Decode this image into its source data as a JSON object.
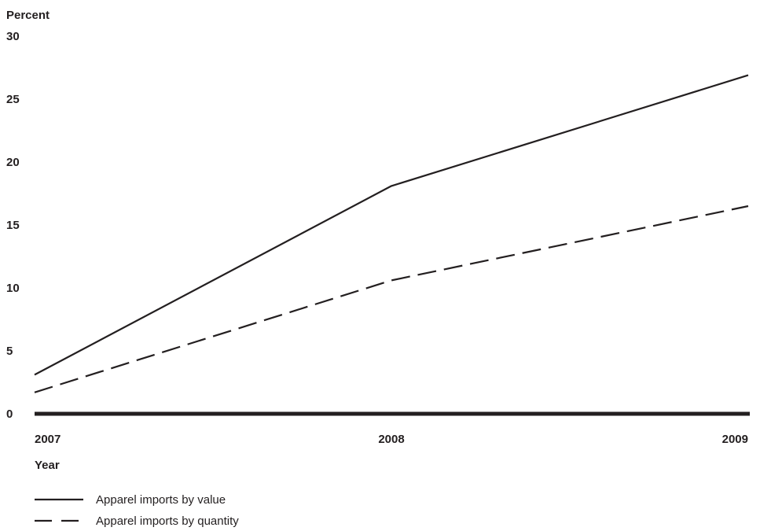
{
  "chart_data": {
    "type": "line",
    "title": "",
    "ylabel": "Percent",
    "xlabel": "Year",
    "x": [
      "2007",
      "2008",
      "2009"
    ],
    "ylim": [
      0,
      30
    ],
    "yticks": [
      0,
      5,
      10,
      15,
      20,
      25,
      30
    ],
    "grid": false,
    "legend_position": "bottom-left",
    "series": [
      {
        "name": "Apparel imports by value",
        "line_style": "solid",
        "color": "#231f20",
        "values": [
          3.1,
          18.1,
          26.9
        ]
      },
      {
        "name": "Apparel imports by quantity",
        "line_style": "dashed",
        "color": "#231f20",
        "values": [
          1.7,
          10.6,
          16.5
        ]
      }
    ]
  }
}
